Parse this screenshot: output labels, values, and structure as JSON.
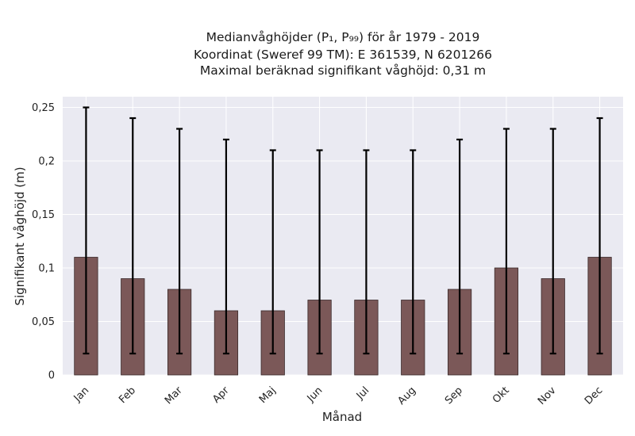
{
  "chart_data": {
    "type": "bar",
    "title_lines": [
      "Medianvåghöjder (P₁, P₉₉) för år 1979 - 2019",
      "Koordinat (Sweref 99 TM): E 361539, N 6201266",
      "Maximal beräknad signifikant våghöjd: 0,31 m"
    ],
    "xlabel": "Månad",
    "ylabel": "Signifikant våghöjd (m)",
    "categories": [
      "Jan",
      "Feb",
      "Mar",
      "Apr",
      "Maj",
      "Jun",
      "Jul",
      "Aug",
      "Sep",
      "Okt",
      "Nov",
      "Dec"
    ],
    "values": [
      0.11,
      0.09,
      0.08,
      0.06,
      0.06,
      0.07,
      0.07,
      0.07,
      0.08,
      0.1,
      0.09,
      0.11
    ],
    "error_low": [
      0.02,
      0.02,
      0.02,
      0.02,
      0.02,
      0.02,
      0.02,
      0.02,
      0.02,
      0.02,
      0.02,
      0.02
    ],
    "error_high": [
      0.25,
      0.24,
      0.23,
      0.22,
      0.21,
      0.21,
      0.21,
      0.21,
      0.22,
      0.23,
      0.23,
      0.24
    ],
    "ylim": [
      0,
      0.26
    ],
    "yticks": [
      0,
      0.05,
      0.1,
      0.15,
      0.2,
      0.25
    ],
    "ytick_labels": [
      "0",
      "0,05",
      "0,1",
      "0,15",
      "0,2",
      "0,25"
    ],
    "grid": true,
    "colors": {
      "bar": "#7b5858",
      "bar_edge": "#3a2a2a",
      "error": "#000000",
      "plot_bg": "#eaeaf2",
      "grid": "#ffffff"
    }
  }
}
